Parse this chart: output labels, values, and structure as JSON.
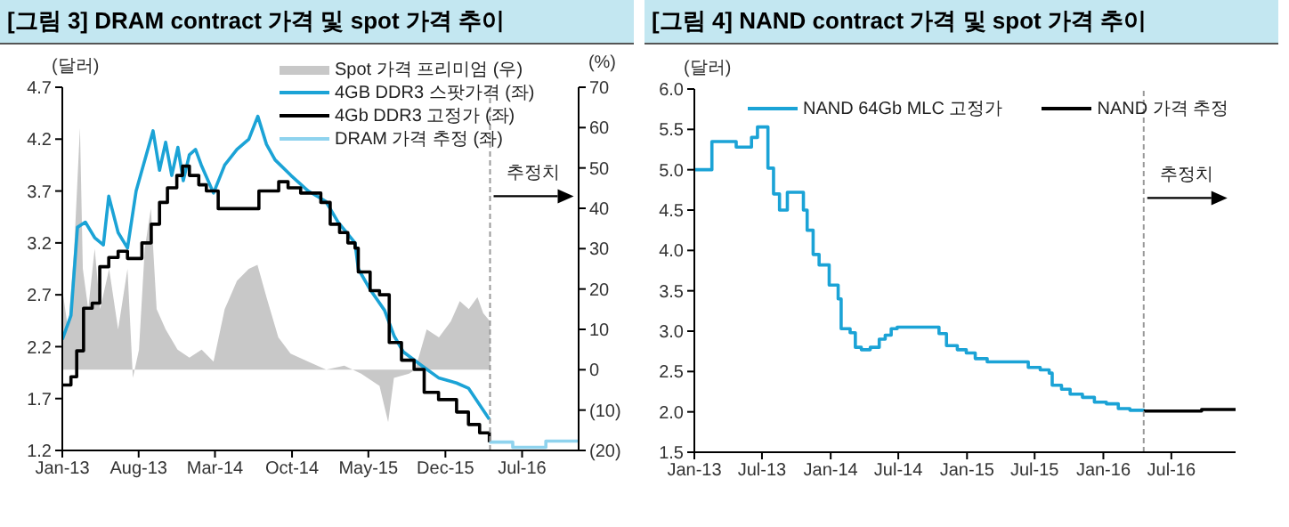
{
  "chart_data": [
    {
      "type": "line",
      "title": "[그림 3] DRAM contract 가격 및 spot 가격 추이",
      "ylabel": "(달러)",
      "y2label": "(%)",
      "xlim": [
        "2013-01-01",
        "2016-12-05"
      ],
      "xticks": [
        {
          "value": "2013-01",
          "label": "Jan-13"
        },
        {
          "value": "2013-08",
          "label": "Aug-13"
        },
        {
          "value": "2014-03",
          "label": "Mar-14"
        },
        {
          "value": "2014-10",
          "label": "Oct-14"
        },
        {
          "value": "2015-05",
          "label": "May-15"
        },
        {
          "value": "2015-12",
          "label": "Dec-15"
        },
        {
          "value": "2016-07",
          "label": "Jul-16"
        }
      ],
      "ylim": [
        1.2,
        4.7
      ],
      "yticks": [
        1.2,
        1.7,
        2.2,
        2.7,
        3.2,
        3.7,
        4.2,
        4.7
      ],
      "y2lim": [
        -20,
        70
      ],
      "y2ticks": [
        {
          "value": -20,
          "label": "(20)"
        },
        {
          "value": -10,
          "label": "(10)"
        },
        0,
        10,
        20,
        30,
        40,
        50,
        60,
        70
      ],
      "legend": "top right",
      "ref_lines": [
        {
          "axis": "x",
          "value": "2016-04-03",
          "label": "추정치",
          "line_style": "dashed",
          "color": "#999999"
        }
      ],
      "series": [
        {
          "name": "Spot 가격 프리미엄 (우)",
          "type": "area",
          "axis": "y2",
          "color": "#c8c8c8",
          "x": [
            "2013-01-01",
            "2013-01-17",
            "2013-02-03",
            "2013-02-19",
            "2013-02-27",
            "2013-03-14",
            "2013-04-01",
            "2013-04-16",
            "2013-05-11",
            "2013-06-05",
            "2013-07-01",
            "2013-07-16",
            "2013-08-02",
            "2013-08-18",
            "2013-09-04",
            "2013-09-20",
            "2013-10-15",
            "2013-11-17",
            "2013-12-20",
            "2014-01-23",
            "2014-02-25",
            "2014-03-28",
            "2014-05-01",
            "2014-06-03",
            "2014-06-27",
            "2014-07-22",
            "2014-08-24",
            "2014-09-27",
            "2014-11-15",
            "2015-01-04",
            "2015-02-23",
            "2015-04-11",
            "2015-06-01",
            "2015-06-25",
            "2015-07-11",
            "2015-08-22",
            "2015-09-08",
            "2015-10-10",
            "2015-11-13",
            "2015-12-16",
            "2016-01-10",
            "2016-02-04",
            "2016-02-28",
            "2016-03-15",
            "2016-04-03"
          ],
          "values": [
            20,
            10,
            30,
            60,
            25,
            15,
            30,
            15,
            25,
            10,
            25,
            -2,
            5,
            30,
            40,
            15,
            10,
            5,
            3,
            5,
            2,
            15,
            22,
            25,
            26,
            18,
            8,
            4,
            2,
            0,
            1,
            -1,
            -4,
            -13,
            -2,
            -1,
            0,
            10,
            8,
            12,
            17,
            15,
            18,
            14,
            12
          ]
        },
        {
          "name": "4GB DDR3 스팟가격 (좌)",
          "color": "#1ba3d6",
          "x": [
            "2013-01-01",
            "2013-01-25",
            "2013-02-12",
            "2013-03-06",
            "2013-04-01",
            "2013-04-25",
            "2013-05-10",
            "2013-06-05",
            "2013-07-01",
            "2013-07-25",
            "2013-09-10",
            "2013-09-28",
            "2013-10-15",
            "2013-11-01",
            "2013-11-18",
            "2013-12-03",
            "2013-12-20",
            "2014-01-06",
            "2014-01-22",
            "2014-02-25",
            "2014-03-28",
            "2014-05-01",
            "2014-06-03",
            "2014-06-28",
            "2014-07-22",
            "2014-08-15",
            "2014-09-28",
            "2014-11-15",
            "2015-01-03",
            "2015-02-06",
            "2015-03-25",
            "2015-04-03",
            "2015-05-06",
            "2015-06-15",
            "2015-07-12",
            "2015-08-06",
            "2015-10-03",
            "2015-11-12",
            "2016-01-01",
            "2016-02-03",
            "2016-04-01"
          ],
          "values": [
            2.27,
            2.5,
            3.35,
            3.4,
            3.25,
            3.18,
            3.65,
            3.3,
            3.15,
            3.7,
            4.28,
            3.9,
            4.17,
            3.85,
            4.12,
            3.8,
            4.05,
            4.1,
            3.95,
            3.68,
            3.95,
            4.1,
            4.2,
            4.42,
            4.15,
            4.0,
            3.85,
            3.7,
            3.6,
            3.4,
            3.2,
            2.95,
            2.75,
            2.55,
            2.3,
            2.15,
            2.0,
            1.9,
            1.85,
            1.8,
            1.5
          ]
        },
        {
          "name": "4Gb DDR3 고정가 (좌)",
          "type": "step",
          "color": "#000000",
          "x": [
            "2013-01-01",
            "2013-01-25",
            "2013-02-10",
            "2013-03-01",
            "2013-03-25",
            "2013-04-15",
            "2013-05-10",
            "2013-06-05",
            "2013-07-01",
            "2013-08-10",
            "2013-09-05",
            "2013-09-28",
            "2013-10-20",
            "2013-11-15",
            "2013-12-01",
            "2013-12-20",
            "2014-01-15",
            "2014-02-05",
            "2014-03-10",
            "2014-07-01",
            "2014-08-25",
            "2014-09-20",
            "2014-10-25",
            "2014-12-20",
            "2015-01-15",
            "2015-02-10",
            "2015-03-05",
            "2015-03-25",
            "2015-04-03",
            "2015-05-06",
            "2015-06-01",
            "2015-06-28",
            "2015-08-01",
            "2015-09-05",
            "2015-10-03",
            "2015-11-12",
            "2016-01-01",
            "2016-02-03",
            "2016-03-05",
            "2016-04-01"
          ],
          "values": [
            1.83,
            1.91,
            2.16,
            2.57,
            2.62,
            2.97,
            3.06,
            3.12,
            3.05,
            3.2,
            3.38,
            3.59,
            3.73,
            3.85,
            3.94,
            3.85,
            3.76,
            3.7,
            3.53,
            3.7,
            3.79,
            3.73,
            3.68,
            3.59,
            3.38,
            3.3,
            3.2,
            3.15,
            2.92,
            2.74,
            2.7,
            2.24,
            2.07,
            1.98,
            1.76,
            1.69,
            1.57,
            1.45,
            1.37,
            1.28
          ]
        },
        {
          "name": "DRAM 가격 추정 (좌)",
          "type": "step",
          "color": "#8fd3ee",
          "x": [
            "2016-04-01",
            "2016-06-05",
            "2016-09-05",
            "2016-12-05"
          ],
          "values": [
            1.28,
            1.23,
            1.29,
            1.29
          ]
        }
      ]
    },
    {
      "type": "step",
      "title": "[그림 4] NAND contract 가격 및 spot 가격 추이",
      "ylabel": "(달러)",
      "xlim": [
        "2013-01-01",
        "2016-12-20"
      ],
      "xticks": [
        {
          "value": "2013-01",
          "label": "Jan-13"
        },
        {
          "value": "2013-07",
          "label": "Jul-13"
        },
        {
          "value": "2014-01",
          "label": "Jan-14"
        },
        {
          "value": "2014-07",
          "label": "Jul-14"
        },
        {
          "value": "2015-01",
          "label": "Jan-15"
        },
        {
          "value": "2015-07",
          "label": "Jul-15"
        },
        {
          "value": "2016-01",
          "label": "Jan-16"
        },
        {
          "value": "2016-07",
          "label": "Jul-16"
        }
      ],
      "ylim": [
        1.5,
        6.0
      ],
      "yticks": [
        1.5,
        {
          "value": 2,
          "label": "2.0"
        },
        2.5,
        {
          "value": 3,
          "label": "3.0"
        },
        3.5,
        {
          "value": 4,
          "label": "4.0"
        },
        4.5,
        {
          "value": 5,
          "label": "5.0"
        },
        5.5,
        {
          "value": 6,
          "label": "6.0"
        }
      ],
      "legend": "top",
      "ref_lines": [
        {
          "axis": "x",
          "value": "2016-04-18",
          "label": "추정치",
          "line_style": "dashed",
          "color": "#999999"
        }
      ],
      "series": [
        {
          "name": "NAND 64Gb MLC 고정가",
          "color": "#1ba3d6",
          "x": [
            "2013-01-01",
            "2013-02-17",
            "2013-04-23",
            "2013-06-03",
            "2013-06-19",
            "2013-07-17",
            "2013-08-01",
            "2013-08-17",
            "2013-09-07",
            "2013-10-20",
            "2013-10-30",
            "2013-11-15",
            "2013-12-01",
            "2013-12-28",
            "2014-01-21",
            "2014-01-29",
            "2014-02-22",
            "2014-03-08",
            "2014-03-24",
            "2014-04-17",
            "2014-05-11",
            "2014-05-27",
            "2014-06-12",
            "2014-06-28",
            "2014-10-03",
            "2014-10-18",
            "2014-11-07",
            "2014-12-06",
            "2014-12-30",
            "2015-01-23",
            "2015-02-24",
            "2015-06-06",
            "2015-06-14",
            "2015-07-16",
            "2015-08-09",
            "2015-08-17",
            "2015-09-11",
            "2015-10-04",
            "2015-11-06",
            "2015-12-08",
            "2016-01-09",
            "2016-02-10",
            "2016-03-12",
            "2016-04-18"
          ],
          "values": [
            5.0,
            5.35,
            5.28,
            5.4,
            5.53,
            5.02,
            4.7,
            4.5,
            4.72,
            4.5,
            4.25,
            3.95,
            3.82,
            3.57,
            3.4,
            3.03,
            2.98,
            2.8,
            2.77,
            2.8,
            2.9,
            2.95,
            3.03,
            3.05,
            3.05,
            2.97,
            2.82,
            2.77,
            2.73,
            2.66,
            2.62,
            2.62,
            2.55,
            2.52,
            2.48,
            2.33,
            2.28,
            2.22,
            2.18,
            2.12,
            2.1,
            2.04,
            2.02,
            2.01
          ]
        },
        {
          "name": "NAND 가격 추정",
          "color": "#000000",
          "x": [
            "2016-04-18",
            "2016-06-16",
            "2016-09-20",
            "2016-12-20"
          ],
          "values": [
            2.01,
            2.01,
            2.03,
            2.03
          ]
        }
      ]
    }
  ]
}
